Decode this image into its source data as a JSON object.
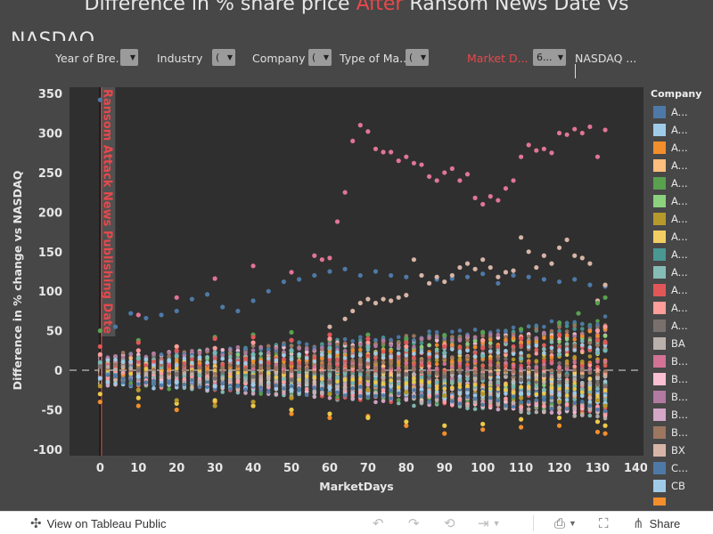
{
  "title": {
    "part1": "Difference in % share price ",
    "part2": "After",
    "part3": " Ransom News Date vs",
    "line2": "NASDAQ"
  },
  "filters": [
    {
      "label": "Year of Bre...",
      "value": "",
      "label_color": "#e0e0e0"
    },
    {
      "label": "Industry",
      "value": "(",
      "label_color": "#e0e0e0"
    },
    {
      "label": "Company",
      "value": "(",
      "label_color": "#e0e0e0"
    },
    {
      "label": "Type of Ma...",
      "value": "(",
      "label_color": "#e0e0e0"
    },
    {
      "label": "Market D...",
      "value": "6...",
      "label_color": "#e8484b"
    },
    {
      "label": "NASDAQ ...",
      "value": "",
      "label_color": "#e0e0e0"
    }
  ],
  "colors": {
    "background": "#474747",
    "plot_bg": "#2f2f2f",
    "accent": "#e8484b",
    "zero_line": "#888888"
  },
  "chart_data": {
    "type": "scatter",
    "xlabel": "MarketDays",
    "ylabel": "Difference in % change vs NASDAQ",
    "xlim": [
      -8,
      142
    ],
    "ylim": [
      -108,
      358
    ],
    "x_ticks": [
      0,
      10,
      20,
      30,
      40,
      50,
      60,
      70,
      80,
      90,
      100,
      110,
      120,
      130,
      140
    ],
    "y_ticks": [
      -100,
      -50,
      0,
      50,
      100,
      150,
      200,
      250,
      300,
      350
    ],
    "reference_line": {
      "x": 0,
      "label": "Ransom Attack News Publishing Date"
    },
    "zero_line": {
      "y": 0,
      "style": "dashed"
    },
    "legend_title": "Company",
    "legend_position": "right",
    "series": [
      {
        "name": "A...",
        "color": "#4e79a7",
        "x": [
          0,
          4,
          8,
          12,
          16,
          20,
          24,
          28,
          32,
          36,
          40,
          44,
          48,
          52,
          56,
          60,
          64,
          68,
          72,
          76,
          80,
          84,
          88,
          92,
          96,
          100,
          104,
          108,
          112,
          116,
          120,
          124,
          128,
          132
        ],
        "y": [
          342,
          55,
          72,
          66,
          70,
          75,
          90,
          96,
          80,
          75,
          88,
          100,
          112,
          115,
          120,
          125,
          128,
          120,
          125,
          120,
          118,
          120,
          115,
          116,
          118,
          122,
          110,
          120,
          118,
          115,
          112,
          115,
          108,
          106
        ]
      },
      {
        "name": "A...",
        "color": "#e17595",
        "x": [
          0,
          10,
          20,
          30,
          40,
          50,
          56,
          58,
          60,
          62,
          64,
          66,
          68,
          70,
          72,
          74,
          76,
          78,
          80,
          82,
          84,
          86,
          88,
          90,
          92,
          94,
          96,
          98,
          100,
          102,
          104,
          106,
          108,
          110,
          112,
          114,
          116,
          118,
          120,
          122,
          124,
          126,
          128,
          130,
          132
        ],
        "y": [
          5,
          70,
          92,
          116,
          132,
          124,
          145,
          140,
          142,
          188,
          225,
          290,
          310,
          302,
          280,
          276,
          276,
          265,
          270,
          262,
          260,
          245,
          240,
          250,
          255,
          240,
          248,
          218,
          210,
          220,
          215,
          230,
          240,
          270,
          285,
          278,
          280,
          275,
          300,
          298,
          305,
          300,
          308,
          270,
          304
        ]
      },
      {
        "name": "A...",
        "color": "#d7b5a6",
        "x": [
          60,
          64,
          66,
          68,
          70,
          72,
          74,
          76,
          78,
          80,
          82,
          84,
          86,
          88,
          90,
          92,
          94,
          96,
          98,
          100,
          102,
          104,
          106,
          108,
          110,
          112,
          114,
          116,
          118,
          120,
          122,
          124,
          126,
          128,
          130,
          132
        ],
        "y": [
          55,
          65,
          75,
          85,
          90,
          85,
          90,
          88,
          92,
          95,
          140,
          120,
          110,
          118,
          112,
          120,
          130,
          135,
          128,
          140,
          130,
          118,
          124,
          126,
          168,
          150,
          130,
          145,
          135,
          155,
          165,
          145,
          142,
          135,
          88,
          108
        ]
      },
      {
        "name": "A...",
        "color": "#59a14f",
        "x": [
          0,
          10,
          20,
          30,
          40,
          50,
          60,
          70,
          80,
          90,
          100,
          110,
          120,
          125,
          130,
          132
        ],
        "y": [
          50,
          38,
          30,
          42,
          45,
          48,
          38,
          45,
          40,
          44,
          48,
          52,
          60,
          72,
          85,
          92
        ]
      },
      {
        "name": "A...",
        "color": "#f28e2b",
        "x": [
          0,
          10,
          20,
          30,
          40,
          50,
          60,
          70,
          80,
          90,
          100,
          110,
          120,
          130,
          132
        ],
        "y": [
          -40,
          -45,
          -50,
          -40,
          -45,
          -55,
          -60,
          -58,
          -70,
          -80,
          -75,
          -72,
          -70,
          -78,
          -80
        ]
      },
      {
        "name": "A...",
        "color": "#edc948",
        "x": [
          0,
          10,
          20,
          30,
          40,
          50,
          60,
          70,
          80,
          90,
          100,
          110,
          120,
          130,
          132
        ],
        "y": [
          -30,
          -35,
          -42,
          -38,
          -45,
          -50,
          -55,
          -60,
          -65,
          -70,
          -68,
          -62,
          -60,
          -65,
          -70
        ]
      },
      {
        "name": "A...",
        "color": "#76b7b2",
        "x": [
          0,
          10,
          20,
          30,
          40,
          50,
          60,
          70,
          80,
          90,
          100,
          110,
          120,
          130,
          132
        ],
        "y": [
          10,
          15,
          18,
          22,
          20,
          25,
          28,
          30,
          26,
          22,
          18,
          15,
          20,
          22,
          25
        ]
      },
      {
        "name": "A...",
        "color": "#a0cbe8",
        "x": [
          0,
          10,
          20,
          30,
          40,
          50,
          60,
          70,
          80,
          90,
          100,
          110,
          120,
          130,
          132
        ],
        "y": [
          -10,
          -8,
          -15,
          -20,
          -18,
          -25,
          -22,
          -28,
          -30,
          -35,
          -32,
          -30,
          -38,
          -40,
          -42
        ]
      },
      {
        "name": "A...",
        "color": "#ff9d9a",
        "x": [
          0,
          10,
          20,
          30,
          40,
          50,
          60,
          70,
          80,
          90,
          100,
          110,
          120,
          130,
          132
        ],
        "y": [
          20,
          25,
          30,
          28,
          35,
          38,
          40,
          35,
          30,
          32,
          38,
          42,
          45,
          50,
          55
        ]
      },
      {
        "name": "B...",
        "color": "#b6992d",
        "x": [
          0,
          10,
          20,
          30,
          40,
          50,
          60,
          70,
          80,
          90,
          100,
          110,
          120,
          130,
          132
        ],
        "y": [
          -20,
          -25,
          -38,
          -45,
          -40,
          -35,
          -30,
          -25,
          -28,
          -32,
          -30,
          -35,
          -40,
          -38,
          -45
        ]
      },
      {
        "name": "C...",
        "color": "#79706e",
        "x": [
          0,
          10,
          20,
          30,
          40,
          50,
          60,
          70,
          80,
          90,
          100,
          110,
          120,
          130,
          132
        ],
        "y": [
          5,
          0,
          -5,
          -10,
          -8,
          -12,
          -15,
          -10,
          -5,
          -8,
          -10,
          -12,
          -15,
          -18,
          -20
        ]
      },
      {
        "name": "CB",
        "color": "#e15759",
        "x": [
          0,
          10,
          20,
          30,
          40,
          50,
          60,
          70,
          80,
          90,
          100,
          110,
          120,
          130,
          132
        ],
        "y": [
          30,
          35,
          25,
          40,
          42,
          38,
          45,
          40,
          35,
          30,
          28,
          40,
          45,
          38,
          35
        ]
      }
    ]
  },
  "legend": {
    "title": "Company",
    "items": [
      {
        "name": "A...",
        "color": "#4e79a7"
      },
      {
        "name": "A...",
        "color": "#a0cbe8"
      },
      {
        "name": "A...",
        "color": "#f28e2b"
      },
      {
        "name": "A...",
        "color": "#ffbe7d"
      },
      {
        "name": "A...",
        "color": "#59a14f"
      },
      {
        "name": "A...",
        "color": "#8cd17d"
      },
      {
        "name": "A...",
        "color": "#b6992d"
      },
      {
        "name": "A...",
        "color": "#f1ce63"
      },
      {
        "name": "A...",
        "color": "#499894"
      },
      {
        "name": "A...",
        "color": "#86bcb6"
      },
      {
        "name": "A...",
        "color": "#e15759"
      },
      {
        "name": "A...",
        "color": "#ff9d9a"
      },
      {
        "name": "A...",
        "color": "#79706e"
      },
      {
        "name": "BA",
        "color": "#bab0ac"
      },
      {
        "name": "B...",
        "color": "#d37295"
      },
      {
        "name": "B...",
        "color": "#fabfd2"
      },
      {
        "name": "B...",
        "color": "#b07aa1"
      },
      {
        "name": "B...",
        "color": "#d4a6c8"
      },
      {
        "name": "B...",
        "color": "#9d7660"
      },
      {
        "name": "BX",
        "color": "#d7b5a6"
      },
      {
        "name": "C...",
        "color": "#4e79a7"
      },
      {
        "name": "CB",
        "color": "#a0cbe8"
      },
      {
        "name": "",
        "color": "#f28e2b"
      }
    ]
  },
  "toolbar": {
    "view_label": "View on Tableau Public",
    "share_label": "Share",
    "icons": [
      "tableau-logo-icon",
      "undo-icon",
      "redo-icon",
      "revert-icon",
      "refresh-icon",
      "download-icon",
      "fullscreen-icon",
      "share-icon"
    ]
  }
}
